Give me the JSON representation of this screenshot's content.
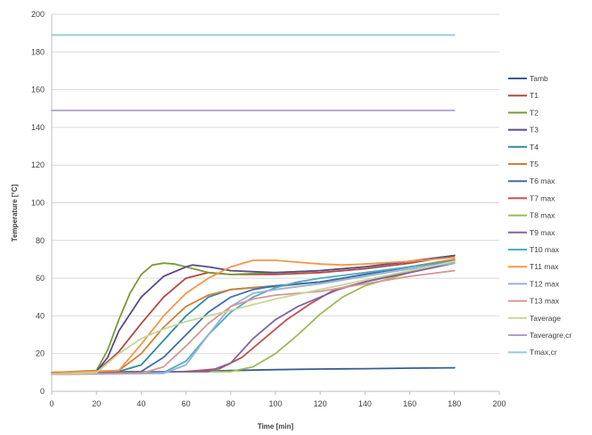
{
  "chart_data": {
    "type": "line",
    "title": "",
    "xlabel": "Time [min]",
    "ylabel": "Temperature [°C]",
    "xlim": [
      0,
      200
    ],
    "ylim": [
      0,
      200
    ],
    "xticks": [
      0,
      20,
      40,
      60,
      80,
      100,
      120,
      140,
      160,
      180,
      200
    ],
    "yticks": [
      0,
      20,
      40,
      60,
      80,
      100,
      120,
      140,
      160,
      180,
      200
    ],
    "grid": "horizontal",
    "legend_position": "right",
    "series": [
      {
        "name": "Tamb",
        "color": "#365e8f",
        "points": [
          [
            0,
            9
          ],
          [
            20,
            9.5
          ],
          [
            40,
            10
          ],
          [
            60,
            10.5
          ],
          [
            80,
            11
          ],
          [
            100,
            11.5
          ],
          [
            120,
            11.8
          ],
          [
            140,
            12
          ],
          [
            160,
            12.3
          ],
          [
            180,
            12.5
          ]
        ]
      },
      {
        "name": "T1",
        "color": "#b34842",
        "points": [
          [
            0,
            10
          ],
          [
            20,
            10.5
          ],
          [
            30,
            21
          ],
          [
            40,
            36
          ],
          [
            50,
            50
          ],
          [
            60,
            60
          ],
          [
            70,
            63
          ],
          [
            80,
            62
          ],
          [
            100,
            62
          ],
          [
            120,
            63
          ],
          [
            140,
            65
          ],
          [
            160,
            68
          ],
          [
            180,
            72
          ]
        ]
      },
      {
        "name": "T2",
        "color": "#7a9a3a",
        "points": [
          [
            0,
            10
          ],
          [
            20,
            11
          ],
          [
            25,
            22
          ],
          [
            30,
            38
          ],
          [
            35,
            52
          ],
          [
            40,
            62
          ],
          [
            45,
            67
          ],
          [
            50,
            68
          ],
          [
            55,
            67.5
          ],
          [
            60,
            66
          ],
          [
            70,
            63
          ],
          [
            80,
            62
          ],
          [
            100,
            63
          ],
          [
            120,
            64
          ],
          [
            140,
            66
          ],
          [
            160,
            69
          ],
          [
            180,
            72
          ]
        ]
      },
      {
        "name": "T3",
        "color": "#5b4a85",
        "points": [
          [
            0,
            10
          ],
          [
            20,
            10.5
          ],
          [
            25,
            18
          ],
          [
            30,
            32
          ],
          [
            40,
            50
          ],
          [
            50,
            61
          ],
          [
            60,
            66
          ],
          [
            63,
            67
          ],
          [
            70,
            66
          ],
          [
            80,
            64
          ],
          [
            100,
            63
          ],
          [
            120,
            64
          ],
          [
            140,
            66
          ],
          [
            160,
            69
          ],
          [
            180,
            72
          ]
        ]
      },
      {
        "name": "T4",
        "color": "#338b9e",
        "points": [
          [
            0,
            10
          ],
          [
            30,
            10.5
          ],
          [
            40,
            14
          ],
          [
            50,
            27
          ],
          [
            60,
            40
          ],
          [
            70,
            50
          ],
          [
            80,
            54
          ],
          [
            90,
            55
          ],
          [
            100,
            56
          ],
          [
            120,
            58
          ],
          [
            140,
            62
          ],
          [
            160,
            66
          ],
          [
            180,
            70
          ]
        ]
      },
      {
        "name": "T5",
        "color": "#d2803a",
        "points": [
          [
            0,
            10
          ],
          [
            30,
            11
          ],
          [
            40,
            20
          ],
          [
            50,
            34
          ],
          [
            60,
            45
          ],
          [
            70,
            51
          ],
          [
            80,
            54
          ],
          [
            90,
            55
          ],
          [
            100,
            55.5
          ],
          [
            120,
            58
          ],
          [
            140,
            62
          ],
          [
            160,
            66
          ],
          [
            180,
            70
          ]
        ]
      },
      {
        "name": "T6 max",
        "color": "#3f6ea6",
        "points": [
          [
            0,
            10
          ],
          [
            40,
            10.5
          ],
          [
            50,
            18
          ],
          [
            60,
            30
          ],
          [
            70,
            42
          ],
          [
            80,
            50
          ],
          [
            90,
            54
          ],
          [
            100,
            56
          ],
          [
            120,
            58
          ],
          [
            140,
            62
          ],
          [
            160,
            66
          ],
          [
            180,
            69
          ]
        ]
      },
      {
        "name": "T7 max",
        "color": "#c0504d",
        "points": [
          [
            0,
            10
          ],
          [
            60,
            10.5
          ],
          [
            75,
            12
          ],
          [
            85,
            18
          ],
          [
            95,
            28
          ],
          [
            105,
            38
          ],
          [
            115,
            46
          ],
          [
            125,
            53
          ],
          [
            140,
            58
          ],
          [
            160,
            64
          ],
          [
            180,
            69
          ]
        ]
      },
      {
        "name": "T8 max",
        "color": "#9bbb59",
        "points": [
          [
            0,
            10
          ],
          [
            80,
            10.5
          ],
          [
            90,
            13
          ],
          [
            100,
            20
          ],
          [
            110,
            30
          ],
          [
            120,
            41
          ],
          [
            130,
            50
          ],
          [
            140,
            56
          ],
          [
            160,
            63
          ],
          [
            180,
            68
          ]
        ]
      },
      {
        "name": "T9 max",
        "color": "#8064a2",
        "points": [
          [
            0,
            10
          ],
          [
            70,
            10.5
          ],
          [
            80,
            15
          ],
          [
            90,
            28
          ],
          [
            100,
            38
          ],
          [
            110,
            45
          ],
          [
            120,
            50
          ],
          [
            130,
            55
          ],
          [
            140,
            58
          ],
          [
            160,
            63
          ],
          [
            180,
            68
          ]
        ]
      },
      {
        "name": "T10 max",
        "color": "#4bacc6",
        "points": [
          [
            0,
            9
          ],
          [
            50,
            10
          ],
          [
            60,
            16
          ],
          [
            70,
            30
          ],
          [
            80,
            42
          ],
          [
            90,
            50
          ],
          [
            100,
            55
          ],
          [
            110,
            58
          ],
          [
            120,
            60
          ],
          [
            140,
            63
          ],
          [
            160,
            66
          ],
          [
            180,
            69
          ]
        ]
      },
      {
        "name": "T11 max",
        "color": "#f79646",
        "points": [
          [
            0,
            10
          ],
          [
            30,
            11
          ],
          [
            40,
            25
          ],
          [
            50,
            40
          ],
          [
            60,
            52
          ],
          [
            70,
            60
          ],
          [
            80,
            66
          ],
          [
            90,
            69.5
          ],
          [
            100,
            69.5
          ],
          [
            110,
            68.5
          ],
          [
            120,
            67.5
          ],
          [
            130,
            67
          ],
          [
            140,
            67.5
          ],
          [
            160,
            69
          ],
          [
            180,
            71
          ]
        ]
      },
      {
        "name": "T12 max",
        "color": "#95b3d7",
        "points": [
          [
            0,
            9
          ],
          [
            50,
            9.5
          ],
          [
            60,
            14
          ],
          [
            70,
            30
          ],
          [
            80,
            45
          ],
          [
            90,
            52
          ],
          [
            100,
            54
          ],
          [
            120,
            57
          ],
          [
            140,
            61
          ],
          [
            160,
            65
          ],
          [
            180,
            68
          ]
        ]
      },
      {
        "name": "T13 max",
        "color": "#d99694",
        "points": [
          [
            0,
            9
          ],
          [
            40,
            9.5
          ],
          [
            50,
            13
          ],
          [
            60,
            24
          ],
          [
            70,
            36
          ],
          [
            80,
            45
          ],
          [
            90,
            49
          ],
          [
            100,
            51
          ],
          [
            120,
            53
          ],
          [
            140,
            57
          ],
          [
            160,
            61
          ],
          [
            180,
            64
          ]
        ]
      },
      {
        "name": "Taverage",
        "color": "#c4d79b",
        "points": [
          [
            0,
            9
          ],
          [
            20,
            10
          ],
          [
            30,
            20
          ],
          [
            40,
            28
          ],
          [
            50,
            33
          ],
          [
            60,
            37
          ],
          [
            70,
            40
          ],
          [
            80,
            43
          ],
          [
            90,
            46
          ],
          [
            100,
            49
          ],
          [
            120,
            54
          ],
          [
            140,
            59
          ],
          [
            160,
            64
          ],
          [
            180,
            69
          ]
        ]
      },
      {
        "name": "Taveragre,cr",
        "color": "#b1a0c7",
        "points": [
          [
            0,
            149
          ],
          [
            180,
            149
          ]
        ]
      },
      {
        "name": "Tmax,cr",
        "color": "#92cddc",
        "points": [
          [
            0,
            189
          ],
          [
            180,
            189
          ]
        ]
      }
    ]
  }
}
